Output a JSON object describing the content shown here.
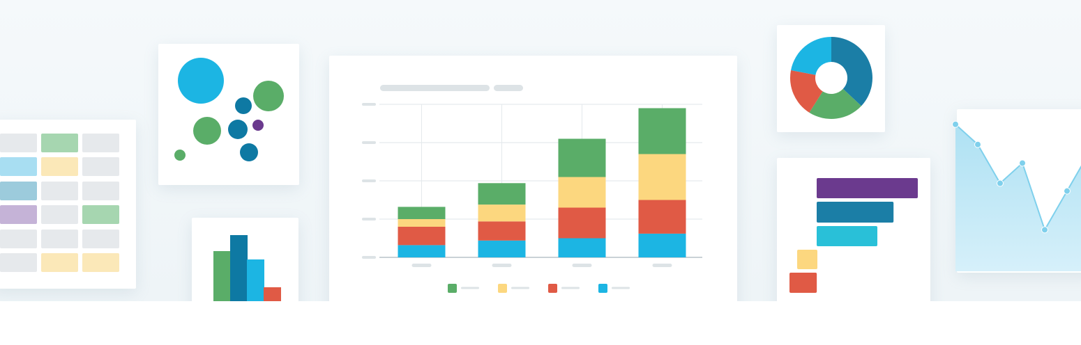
{
  "palette": {
    "green": "#5aad68",
    "yellow": "#fcd77f",
    "red": "#e05a45",
    "cyan": "#1cb5e3",
    "teal": "#0e79a3",
    "purple": "#6b3a8e",
    "steel": "#1b7ea6"
  },
  "chart_data": [
    {
      "type": "bar",
      "stacked": true,
      "categories": [
        "",
        "",
        "",
        ""
      ],
      "series": [
        {
          "color": "#1cb5e3",
          "values": [
            1.6,
            2.2,
            2.5,
            3.1
          ]
        },
        {
          "color": "#e05a45",
          "values": [
            2.4,
            2.5,
            4.0,
            4.4
          ]
        },
        {
          "color": "#fcd77f",
          "values": [
            1.0,
            2.2,
            4.0,
            6.0
          ]
        },
        {
          "color": "#5aad68",
          "values": [
            1.6,
            2.8,
            5.0,
            6.0
          ]
        }
      ],
      "ylim": [
        0,
        20
      ],
      "grid": true,
      "legend": "bottom"
    },
    {
      "type": "pie",
      "donut": true,
      "slices": [
        {
          "color": "#1b7ea6",
          "value": 37
        },
        {
          "color": "#5aad68",
          "value": 22
        },
        {
          "color": "#e05a45",
          "value": 19
        },
        {
          "color": "#1cb5e3",
          "value": 22
        }
      ]
    },
    {
      "type": "bar",
      "orientation": "horizontal",
      "series": [
        {
          "color": "#6b3a8e",
          "values": [
            100
          ]
        },
        {
          "color": "#1b7ea6",
          "values": [
            76
          ]
        },
        {
          "color": "#29c0d8",
          "values": [
            60
          ]
        },
        {
          "color": "#fcd77f",
          "values": [
            20
          ]
        },
        {
          "color": "#e05a45",
          "values": [
            27
          ]
        }
      ]
    },
    {
      "type": "bar",
      "series": [
        {
          "color": "#5aad68",
          "values": [
            72
          ]
        },
        {
          "color": "#0e79a3",
          "values": [
            95
          ]
        },
        {
          "color": "#1cb5e3",
          "values": [
            60
          ]
        },
        {
          "color": "#e05a45",
          "values": [
            20
          ]
        }
      ]
    },
    {
      "type": "area",
      "values": [
        88,
        75,
        50,
        63,
        20,
        45,
        70
      ]
    },
    {
      "type": "scatter",
      "bubbles": [
        {
          "color": "#1cb5e3",
          "size": 33
        },
        {
          "color": "#5aad68",
          "size": 20
        },
        {
          "color": "#5aad68",
          "size": 22
        },
        {
          "color": "#0e79a3",
          "size": 12
        },
        {
          "color": "#0e79a3",
          "size": 14
        },
        {
          "color": "#6b3a8e",
          "size": 8
        },
        {
          "color": "#0e79a3",
          "size": 13
        },
        {
          "color": "#5aad68",
          "size": 8
        }
      ]
    }
  ],
  "table_grid": {
    "colors": [
      [
        "#e6e9ec",
        "#a6d6b0",
        "#e6e9ec"
      ],
      [
        "#a8def2",
        "#fbe8b8",
        "#e6e9ec"
      ],
      [
        "#9ccbdc",
        "#e6e9ec",
        "#e6e9ec"
      ],
      [
        "#c5b3d7",
        "#e6e9ec",
        "#a6d6b0"
      ],
      [
        "#e6e9ec",
        "#e6e9ec",
        "#e6e9ec"
      ],
      [
        "#e6e9ec",
        "#fbe8b8",
        "#fbe8b8"
      ]
    ]
  }
}
